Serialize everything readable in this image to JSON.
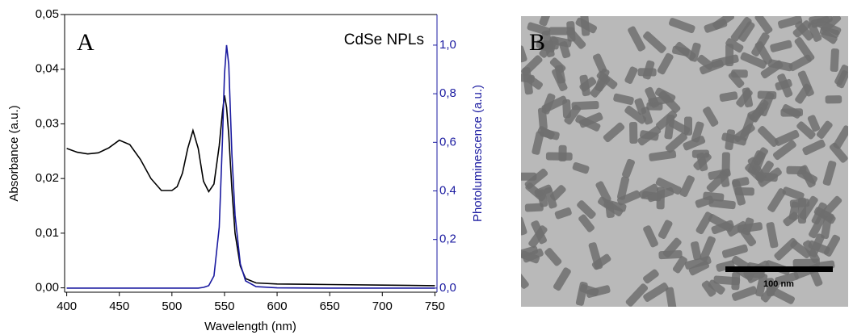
{
  "chart_data": {
    "type": "line",
    "panel_label": "A",
    "annotation": "CdSe NPLs",
    "x_label": "Wavelength (nm)",
    "y_label": "Absorbance (a.u.)",
    "y2_label": "Photoluminescence (a.u.)",
    "x": [
      400,
      410,
      420,
      430,
      440,
      450,
      460,
      470,
      480,
      490,
      500,
      505,
      510,
      515,
      520,
      525,
      530,
      535,
      540,
      545,
      548,
      550,
      552,
      554,
      557,
      560,
      565,
      570,
      580,
      600,
      650,
      700,
      750
    ],
    "series": [
      {
        "color": "#000000",
        "values": [
          0.0255,
          0.0248,
          0.0245,
          0.0247,
          0.0256,
          0.027,
          0.0262,
          0.0235,
          0.02,
          0.0178,
          0.0178,
          0.0185,
          0.021,
          0.0255,
          0.0288,
          0.0255,
          0.0195,
          0.0176,
          0.019,
          0.026,
          0.032,
          0.0352,
          0.033,
          0.028,
          0.018,
          0.01,
          0.004,
          0.0017,
          0.0009,
          0.0007,
          0.0006,
          0.0005,
          0.0004
        ]
      },
      {
        "color": "#1a1aa0",
        "axis": "y2",
        "values": [
          0,
          0,
          0,
          0,
          0,
          0,
          0,
          0,
          0,
          0,
          0,
          0,
          0,
          0,
          0,
          0,
          0.003,
          0.01,
          0.05,
          0.25,
          0.6,
          0.88,
          1.0,
          0.92,
          0.55,
          0.3,
          0.1,
          0.03,
          0.006,
          0.001,
          0,
          0,
          0
        ]
      }
    ],
    "xlim": [
      398,
      752
    ],
    "xticks": [
      400,
      450,
      500,
      550,
      600,
      650,
      700,
      750
    ],
    "ylim": [
      -0.0008,
      0.05
    ],
    "yticks": [
      {
        "value": 0,
        "label": "0,00"
      },
      {
        "value": 0.01,
        "label": "0,01"
      },
      {
        "value": 0.02,
        "label": "0,02"
      },
      {
        "value": 0.03,
        "label": "0,03"
      },
      {
        "value": 0.04,
        "label": "0,04"
      },
      {
        "value": 0.05,
        "label": "0,05"
      }
    ],
    "y2lim": [
      -0.017,
      1.126
    ],
    "y2ticks": [
      {
        "value": 0,
        "label": "0,0"
      },
      {
        "value": 0.2,
        "label": "0,2"
      },
      {
        "value": 0.4,
        "label": "0,4"
      },
      {
        "value": 0.6,
        "label": "0,6"
      },
      {
        "value": 0.8,
        "label": "0,8"
      },
      {
        "value": 1,
        "label": "1,0"
      }
    ],
    "y2color": "#1a1aa0"
  },
  "image_panel": {
    "panel_label": "B",
    "scale_bar_label": "100 nm"
  }
}
